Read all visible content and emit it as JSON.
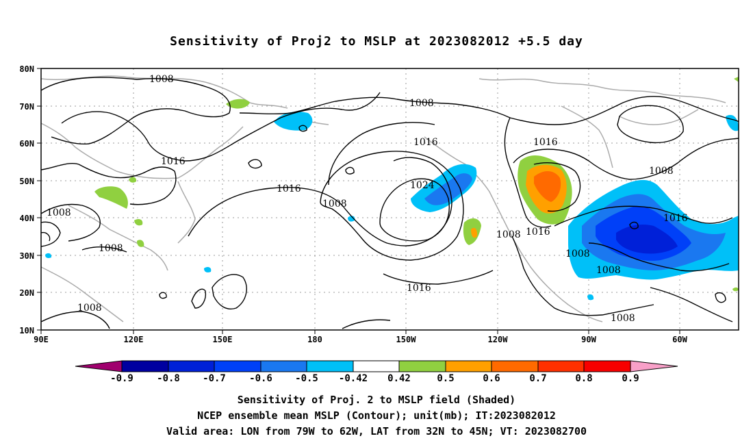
{
  "title": "Sensitivity of Proj2 to MSLP at 2023082012 +5.5 day",
  "map": {
    "lat_labels": [
      "80N",
      "70N",
      "60N",
      "50N",
      "40N",
      "30N",
      "20N",
      "10N"
    ],
    "lon_labels": [
      "90E",
      "120E",
      "150E",
      "180",
      "150W",
      "120W",
      "90W",
      "60W"
    ],
    "contour_labels": [
      {
        "text": "1008"
      },
      {
        "text": "1008"
      },
      {
        "text": "1016"
      },
      {
        "text": "1016"
      },
      {
        "text": "1008"
      },
      {
        "text": "1008"
      },
      {
        "text": "1008"
      },
      {
        "text": "1016"
      },
      {
        "text": "1024"
      },
      {
        "text": "1008"
      },
      {
        "text": "1016"
      },
      {
        "text": "1016"
      },
      {
        "text": "1008"
      },
      {
        "text": "1016"
      },
      {
        "text": "1008"
      },
      {
        "text": "1008"
      },
      {
        "text": "1016"
      },
      {
        "text": "1008"
      },
      {
        "text": "1008"
      }
    ]
  },
  "colorbar": {
    "labels": [
      "-0.9",
      "-0.8",
      "-0.7",
      "-0.6",
      "-0.5",
      "-0.42",
      "0.42",
      "0.5",
      "0.6",
      "0.7",
      "0.8",
      "0.9"
    ],
    "colors": [
      "#a0006e",
      "#0000a0",
      "#0020d8",
      "#0040f8",
      "#1a78f0",
      "#00c0f8",
      "#ffffff",
      "#90d040",
      "#ffa000",
      "#ff6a00",
      "#ff3000",
      "#f80000",
      "#f8a0c8"
    ]
  },
  "caption": [
    "Sensitivity of Proj. 2 to MSLP field (Shaded)",
    "NCEP ensemble mean MSLP (Contour); unit(mb); IT:2023082012",
    "Valid area: LON from 79W to 62W, LAT from 32N to 45N; VT: 2023082700"
  ]
}
